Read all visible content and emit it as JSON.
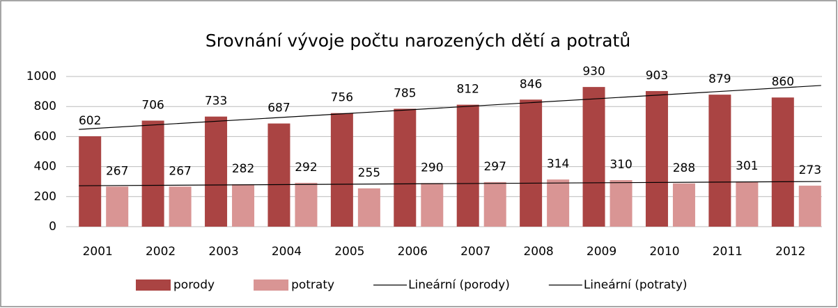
{
  "chart_data": {
    "type": "bar",
    "title": "Srovnání vývoje počtu narozených dětí a potratů",
    "categories": [
      "2001",
      "2002",
      "2003",
      "2004",
      "2005",
      "2006",
      "2007",
      "2008",
      "2009",
      "2010",
      "2011",
      "2012"
    ],
    "series": [
      {
        "name": "porody",
        "color": "#aa4443",
        "values": [
          602,
          706,
          733,
          687,
          756,
          785,
          812,
          846,
          930,
          903,
          879,
          860
        ]
      },
      {
        "name": "potraty",
        "color": "#d99594",
        "values": [
          267,
          267,
          282,
          292,
          255,
          290,
          297,
          314,
          310,
          288,
          301,
          273
        ]
      }
    ],
    "trendlines": [
      {
        "name": "Lineární (porody)",
        "series": 0,
        "color": "#000000"
      },
      {
        "name": "Lineární (potraty)",
        "series": 1,
        "color": "#000000"
      }
    ],
    "ylim": [
      0,
      1000
    ],
    "yticks": [
      0,
      200,
      400,
      600,
      800,
      1000
    ],
    "grid": true,
    "legend": "bottom"
  }
}
